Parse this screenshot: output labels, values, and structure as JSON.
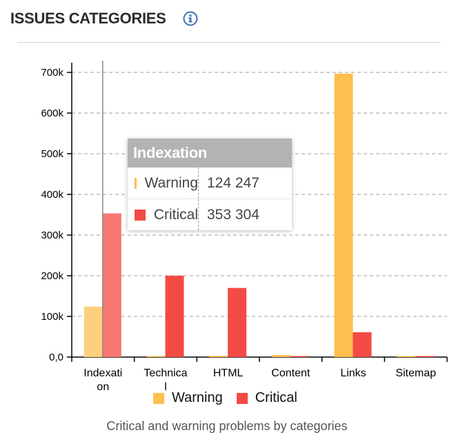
{
  "header": {
    "title": "ISSUES CATEGORIES"
  },
  "caption": "Critical and warning problems by categories",
  "colors": {
    "warning": "#fdbf4d",
    "critical": "#f44a45",
    "warning_hover": "#fed07d",
    "critical_hover": "#f87873"
  },
  "legend": [
    {
      "label": "Warning",
      "color": "#fdbf4d"
    },
    {
      "label": "Critical",
      "color": "#f44a45"
    }
  ],
  "tooltip": {
    "title": "Indexation",
    "rows": [
      {
        "label": "Warning",
        "value": "124 247",
        "color": "#fdbf4d"
      },
      {
        "label": "Critical",
        "value": "353 304",
        "color": "#f44a45"
      }
    ]
  },
  "chart_data": {
    "type": "bar",
    "title": "",
    "xlabel": "",
    "ylabel": "",
    "categories": [
      "Indexation",
      "Technical",
      "HTML",
      "Content",
      "Links",
      "Sitemap"
    ],
    "category_labels": [
      [
        "Indexati",
        "on"
      ],
      [
        "Technica",
        "l"
      ],
      [
        "HTML"
      ],
      [
        "Content"
      ],
      [
        "Links"
      ],
      [
        "Sitemap"
      ]
    ],
    "series": [
      {
        "name": "Warning",
        "values": [
          124247,
          500,
          3000,
          5000,
          697000,
          500
        ]
      },
      {
        "name": "Critical",
        "values": [
          353304,
          200000,
          170000,
          500,
          61000,
          500
        ]
      }
    ],
    "ylim": [
      0,
      700000
    ],
    "yticks": [
      0,
      100000,
      200000,
      300000,
      400000,
      500000,
      600000,
      700000
    ],
    "ytick_labels": [
      "0,0",
      "100k",
      "200k",
      "300k",
      "400k",
      "500k",
      "600k",
      "700k"
    ],
    "grid": true,
    "highlighted_category": "Indexation",
    "legend_position": "bottom"
  }
}
